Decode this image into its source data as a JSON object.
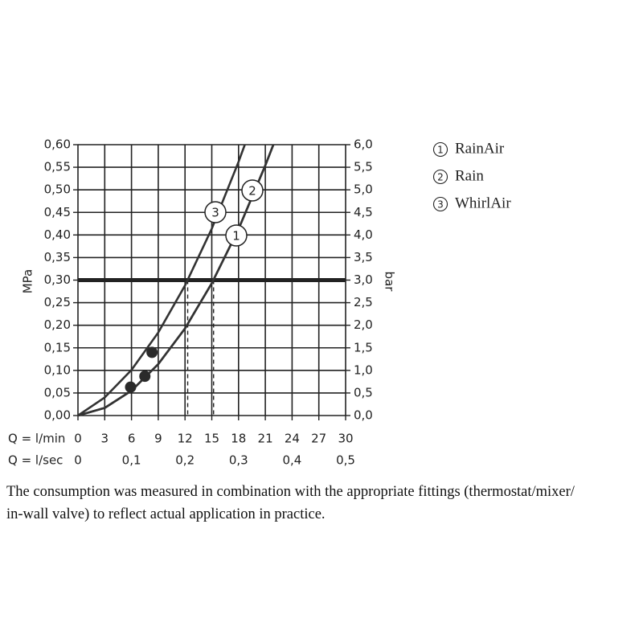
{
  "chart_data": {
    "type": "line",
    "ylabel": "MPa",
    "y2label": "bar",
    "xlabel": "Q = l/min",
    "x2label": "Q = l/sec",
    "xlim": [
      0,
      30
    ],
    "xticks": [
      0,
      3,
      6,
      9,
      12,
      15,
      18,
      21,
      24,
      27,
      30
    ],
    "x2lim": [
      0,
      0.5
    ],
    "x2ticks": [
      0,
      {
        "value": 0.1,
        "label": "0,1"
      },
      {
        "value": 0.2,
        "label": "0,2"
      },
      {
        "value": 0.3,
        "label": "0,3"
      },
      {
        "value": 0.4,
        "label": "0,4"
      },
      {
        "value": 0.5,
        "label": "0,5"
      }
    ],
    "ylim": [
      0,
      0.6
    ],
    "yticks": [
      {
        "value": 0,
        "label": "0,00"
      },
      {
        "value": 0.05,
        "label": "0,05"
      },
      {
        "value": 0.1,
        "label": "0,10"
      },
      {
        "value": 0.15,
        "label": "0,15"
      },
      {
        "value": 0.2,
        "label": "0,20"
      },
      {
        "value": 0.25,
        "label": "0,25"
      },
      {
        "value": 0.3,
        "label": "0,30"
      },
      {
        "value": 0.35,
        "label": "0,35"
      },
      {
        "value": 0.4,
        "label": "0,40"
      },
      {
        "value": 0.45,
        "label": "0,45"
      },
      {
        "value": 0.5,
        "label": "0,50"
      },
      {
        "value": 0.55,
        "label": "0,55"
      },
      {
        "value": 0.6,
        "label": "0,60"
      }
    ],
    "y2lim": [
      0,
      6
    ],
    "y2ticks": [
      {
        "value": 0,
        "label": "0,0"
      },
      {
        "value": 0.5,
        "label": "0,5"
      },
      {
        "value": 1,
        "label": "1,0"
      },
      {
        "value": 1.5,
        "label": "1,5"
      },
      {
        "value": 2,
        "label": "2,0"
      },
      {
        "value": 2.5,
        "label": "2,5"
      },
      {
        "value": 3,
        "label": "3,0"
      },
      {
        "value": 3.5,
        "label": "3,5"
      },
      {
        "value": 4,
        "label": "4,0"
      },
      {
        "value": 4.5,
        "label": "4,5"
      },
      {
        "value": 5,
        "label": "5,0"
      },
      {
        "value": 5.5,
        "label": "5,5"
      },
      {
        "value": 6,
        "label": "6,0"
      }
    ],
    "grid": true,
    "hline": 0.3,
    "droplines_x": [
      12.3,
      15.2
    ],
    "color": "#333333",
    "series": [
      {
        "name": "RainAir",
        "marker_label": "1",
        "x": [
          0,
          3,
          6,
          9,
          12,
          15,
          18,
          21,
          21.9
        ],
        "values": [
          0,
          0.017,
          0.055,
          0.114,
          0.193,
          0.293,
          0.413,
          0.554,
          0.6
        ]
      },
      {
        "name": "Rain",
        "marker_label": "2",
        "x": [
          0,
          3,
          6,
          9,
          12,
          15,
          18,
          21,
          21.9
        ],
        "values": [
          0,
          0.017,
          0.055,
          0.114,
          0.193,
          0.293,
          0.413,
          0.554,
          0.6
        ]
      },
      {
        "name": "WhirlAir",
        "marker_label": "3",
        "x": [
          0,
          3,
          6,
          9,
          12,
          15,
          18,
          18.7
        ],
        "values": [
          0,
          0.04,
          0.101,
          0.184,
          0.288,
          0.414,
          0.562,
          0.6
        ]
      }
    ],
    "points": {
      "x": [
        5.9,
        7.5,
        8.3
      ],
      "values": [
        0.063,
        0.087,
        0.14
      ]
    },
    "note_lines": [
      "The consumption was measured in combination with the appropriate fittings (thermostat/mixer/",
      "in-wall valve) to reflect actual application in practice."
    ]
  }
}
